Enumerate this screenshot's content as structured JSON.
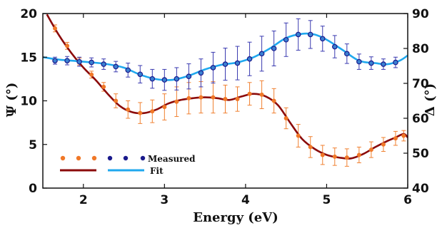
{
  "chart_data": {
    "type": "line",
    "xlabel": "Energy (eV)",
    "ylabel_left": "Ψ (°)",
    "ylabel_right": "Δ (°)",
    "xlim": [
      1.5,
      6
    ],
    "ylim_left": [
      0,
      20
    ],
    "ylim_right": [
      40,
      90
    ],
    "x_ticks": [
      "2",
      "3",
      "4",
      "5",
      "6"
    ],
    "y_ticks_left": [
      "0",
      "5",
      "10",
      "15",
      "20"
    ],
    "y_ticks_right": [
      "40",
      "50",
      "60",
      "70",
      "80",
      "90"
    ],
    "legend": {
      "placement": "bottom-left",
      "measured": "Measured",
      "fit": "Fit"
    },
    "colors": {
      "psi_marker": "#f07828",
      "psi_fit": "#8b0a0a",
      "delta_marker": "#1a1a8c",
      "delta_fill": "#3a7fd0",
      "delta_fit": "#20a8ee",
      "error_bar_psi": "#f08030",
      "error_bar_delta": "#3a3ab0"
    },
    "series": [
      {
        "axis": "left",
        "measured": {
          "x": [
            1.65,
            1.8,
            1.95,
            2.1,
            2.25,
            2.4,
            2.55,
            2.7,
            2.85,
            3.0,
            3.15,
            3.3,
            3.45,
            3.6,
            3.75,
            3.9,
            4.05,
            4.2,
            4.35,
            4.5,
            4.65,
            4.8,
            4.95,
            5.1,
            5.25,
            5.4,
            5.55,
            5.7,
            5.85,
            5.95
          ],
          "y": [
            18.3,
            16.3,
            14.5,
            13.0,
            11.6,
            10.0,
            9.0,
            8.6,
            8.8,
            9.3,
            9.9,
            10.3,
            10.4,
            10.4,
            10.2,
            10.2,
            10.8,
            10.7,
            10.0,
            8.0,
            6.0,
            4.7,
            3.8,
            3.6,
            3.5,
            3.8,
            4.4,
            5.0,
            5.7,
            6.0
          ],
          "err": [
            0.4,
            0.4,
            0.4,
            0.4,
            0.5,
            0.8,
            1.0,
            1.2,
            1.3,
            1.5,
            1.7,
            1.8,
            1.8,
            1.8,
            1.6,
            1.4,
            1.3,
            1.6,
            1.4,
            1.2,
            1.3,
            1.2,
            1.1,
            1.0,
            1.0,
            0.9,
            0.9,
            0.8,
            0.8,
            0.6
          ]
        },
        "fit": {
          "x": [
            1.55,
            1.7,
            1.85,
            2.0,
            2.15,
            2.3,
            2.45,
            2.6,
            2.75,
            2.9,
            3.05,
            3.2,
            3.35,
            3.5,
            3.65,
            3.8,
            3.95,
            4.1,
            4.25,
            4.4,
            4.55,
            4.7,
            4.85,
            5.0,
            5.15,
            5.3,
            5.45,
            5.6,
            5.75,
            5.85,
            5.95,
            6.0
          ],
          "y": [
            19.9,
            17.5,
            15.5,
            13.8,
            12.4,
            10.8,
            9.4,
            8.7,
            8.6,
            9.0,
            9.7,
            10.1,
            10.3,
            10.4,
            10.3,
            10.1,
            10.5,
            10.8,
            10.5,
            9.5,
            7.5,
            5.6,
            4.5,
            3.8,
            3.5,
            3.4,
            3.9,
            4.7,
            5.4,
            5.8,
            6.2,
            5.8
          ]
        }
      },
      {
        "axis": "right",
        "measured": {
          "x": [
            1.65,
            1.8,
            1.95,
            2.1,
            2.25,
            2.4,
            2.55,
            2.7,
            2.85,
            3.0,
            3.15,
            3.3,
            3.45,
            3.6,
            3.75,
            3.9,
            4.05,
            4.2,
            4.35,
            4.5,
            4.65,
            4.8,
            4.95,
            5.1,
            5.25,
            5.4,
            5.55,
            5.7,
            5.85
          ],
          "y": [
            76.5,
            76.5,
            76.2,
            76.0,
            75.5,
            74.8,
            73.8,
            72.6,
            71.3,
            71.0,
            71.3,
            72.0,
            73.0,
            74.5,
            75.5,
            75.8,
            77.0,
            78.5,
            80.0,
            82.5,
            84.0,
            84.0,
            82.8,
            80.5,
            78.5,
            76.2,
            75.8,
            75.5,
            76.0
          ],
          "err": [
            1.0,
            1.2,
            1.3,
            1.3,
            1.5,
            1.5,
            2.0,
            2.5,
            2.7,
            3.0,
            3.2,
            3.6,
            4.0,
            4.4,
            4.6,
            4.8,
            4.8,
            5.0,
            5.0,
            4.8,
            4.5,
            4.0,
            3.6,
            3.2,
            2.8,
            2.2,
            1.8,
            1.5,
            1.5
          ]
        },
        "fit": {
          "x": [
            1.5,
            1.7,
            1.9,
            2.1,
            2.3,
            2.5,
            2.7,
            2.9,
            3.1,
            3.3,
            3.5,
            3.7,
            3.9,
            4.1,
            4.3,
            4.5,
            4.7,
            4.85,
            5.0,
            5.2,
            5.4,
            5.6,
            5.75,
            5.9,
            6.0
          ],
          "y": [
            77.5,
            76.8,
            76.4,
            76.0,
            75.5,
            74.5,
            72.5,
            71.2,
            71.0,
            72.2,
            74.0,
            75.3,
            76.0,
            77.5,
            80.0,
            83.0,
            84.2,
            84.0,
            82.5,
            79.5,
            76.5,
            75.8,
            75.5,
            76.5,
            78.0
          ]
        }
      }
    ]
  }
}
